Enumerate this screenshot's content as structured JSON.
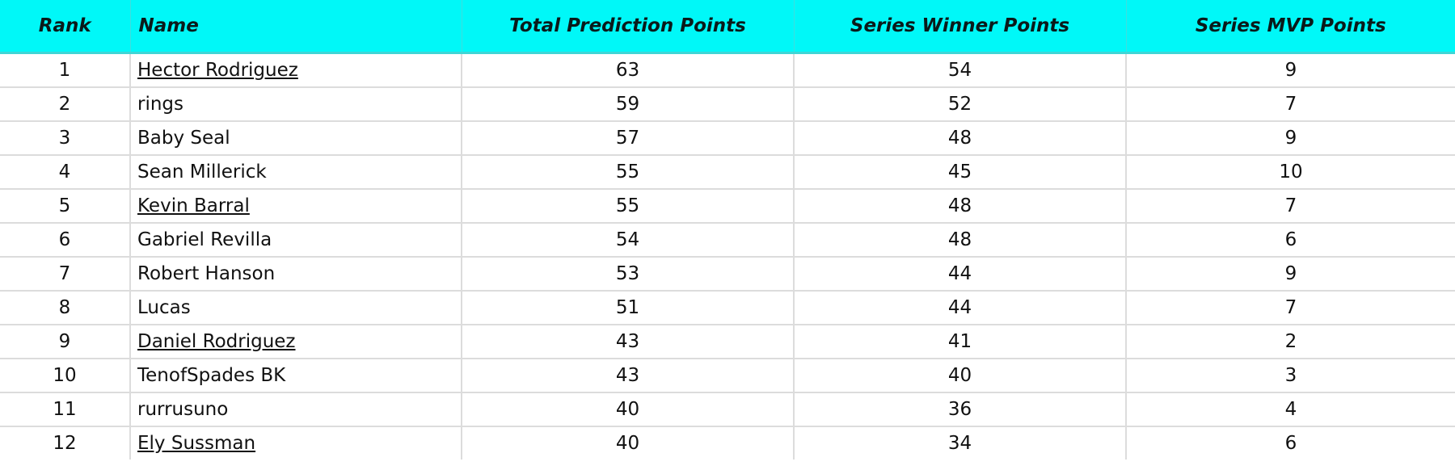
{
  "headers": [
    "Rank",
    "Name",
    "Total Prediction Points",
    "Series Winner Points",
    "Series MVP Points"
  ],
  "rows": [
    {
      "rank": "1",
      "name": "Hector Rodriguez",
      "link": true,
      "total": "63",
      "winner": "54",
      "mvp": "9"
    },
    {
      "rank": "2",
      "name": "rings",
      "link": false,
      "total": "59",
      "winner": "52",
      "mvp": "7"
    },
    {
      "rank": "3",
      "name": "Baby Seal",
      "link": false,
      "total": "57",
      "winner": "48",
      "mvp": "9"
    },
    {
      "rank": "4",
      "name": "Sean Millerick",
      "link": false,
      "total": "55",
      "winner": "45",
      "mvp": "10"
    },
    {
      "rank": "5",
      "name": "Kevin Barral",
      "link": true,
      "total": "55",
      "winner": "48",
      "mvp": "7"
    },
    {
      "rank": "6",
      "name": "Gabriel Revilla",
      "link": false,
      "total": "54",
      "winner": "48",
      "mvp": "6"
    },
    {
      "rank": "7",
      "name": "Robert Hanson",
      "link": false,
      "total": "53",
      "winner": "44",
      "mvp": "9"
    },
    {
      "rank": "8",
      "name": "Lucas",
      "link": false,
      "total": "51",
      "winner": "44",
      "mvp": "7"
    },
    {
      "rank": "9",
      "name": "Daniel Rodriguez",
      "link": true,
      "total": "43",
      "winner": "41",
      "mvp": "2"
    },
    {
      "rank": "10",
      "name": "TenofSpades BK",
      "link": false,
      "total": "43",
      "winner": "40",
      "mvp": "3"
    },
    {
      "rank": "11",
      "name": "rurrusuno",
      "link": false,
      "total": "40",
      "winner": "36",
      "mvp": "4"
    },
    {
      "rank": "12",
      "name": "Ely Sussman",
      "link": true,
      "total": "40",
      "winner": "34",
      "mvp": "6"
    }
  ],
  "colors": {
    "header_bg": "#00f8f8",
    "grid": "#dcdcdc"
  }
}
